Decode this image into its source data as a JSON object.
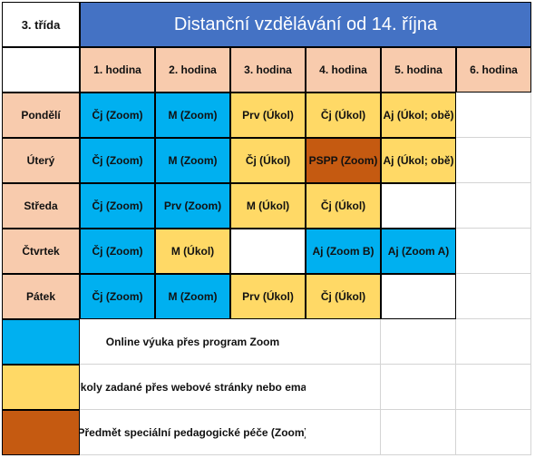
{
  "header": {
    "class_label": "3. třída",
    "title": "Distanční vzdělávání  od 14. října"
  },
  "columns": [
    "1. hodina",
    "2. hodina",
    "3. hodina",
    "4. hodina",
    "5. hodina",
    "6. hodina"
  ],
  "rows": [
    {
      "day": "Pondělí",
      "cells": [
        {
          "text": "Čj (Zoom)",
          "kind": "zoom"
        },
        {
          "text": "M (Zoom)",
          "kind": "zoom"
        },
        {
          "text": "Prv (Úkol)",
          "kind": "ukol"
        },
        {
          "text": "Čj (Úkol)",
          "kind": "ukol"
        },
        {
          "text": "Aj (Úkol; obě)",
          "kind": "ukol"
        },
        {
          "text": "",
          "kind": "none"
        }
      ]
    },
    {
      "day": "Úterý",
      "cells": [
        {
          "text": "Čj (Zoom)",
          "kind": "zoom"
        },
        {
          "text": "M (Zoom)",
          "kind": "zoom"
        },
        {
          "text": "Čj (Úkol)",
          "kind": "ukol"
        },
        {
          "text": "PSPP (Zoom)",
          "kind": "pspp"
        },
        {
          "text": "Aj (Úkol; obě)",
          "kind": "ukol"
        },
        {
          "text": "",
          "kind": "none"
        }
      ]
    },
    {
      "day": "Středa",
      "cells": [
        {
          "text": "Čj (Zoom)",
          "kind": "zoom"
        },
        {
          "text": "Prv (Zoom)",
          "kind": "zoom"
        },
        {
          "text": "M (Úkol)",
          "kind": "ukol"
        },
        {
          "text": "Čj (Úkol)",
          "kind": "ukol"
        },
        {
          "text": "",
          "kind": "empty"
        },
        {
          "text": "",
          "kind": "none"
        }
      ]
    },
    {
      "day": "Čtvrtek",
      "cells": [
        {
          "text": "Čj (Zoom)",
          "kind": "zoom"
        },
        {
          "text": "M (Úkol)",
          "kind": "ukol"
        },
        {
          "text": "",
          "kind": "empty"
        },
        {
          "text": "Aj (Zoom B)",
          "kind": "zoom"
        },
        {
          "text": "Aj (Zoom A)",
          "kind": "zoom"
        },
        {
          "text": "",
          "kind": "none"
        }
      ]
    },
    {
      "day": "Pátek",
      "cells": [
        {
          "text": "Čj (Zoom)",
          "kind": "zoom"
        },
        {
          "text": "M (Zoom)",
          "kind": "zoom"
        },
        {
          "text": "Prv (Úkol)",
          "kind": "ukol"
        },
        {
          "text": "Čj (Úkol)",
          "kind": "ukol"
        },
        {
          "text": "",
          "kind": "empty"
        },
        {
          "text": "",
          "kind": "none"
        }
      ]
    }
  ],
  "legend": [
    {
      "kind": "zoom",
      "text": "Online výuka přes program Zoom"
    },
    {
      "kind": "ukol",
      "text": "Úkoly zadané přes webové stránky nebo email"
    },
    {
      "kind": "pspp",
      "text": "Předmět speciální pedagogické péče (Zoom)"
    }
  ],
  "colors": {
    "title": "#4472c4",
    "header": "#f8cbad",
    "zoom": "#00b0f0",
    "ukol": "#ffd966",
    "pspp": "#c55a11"
  }
}
